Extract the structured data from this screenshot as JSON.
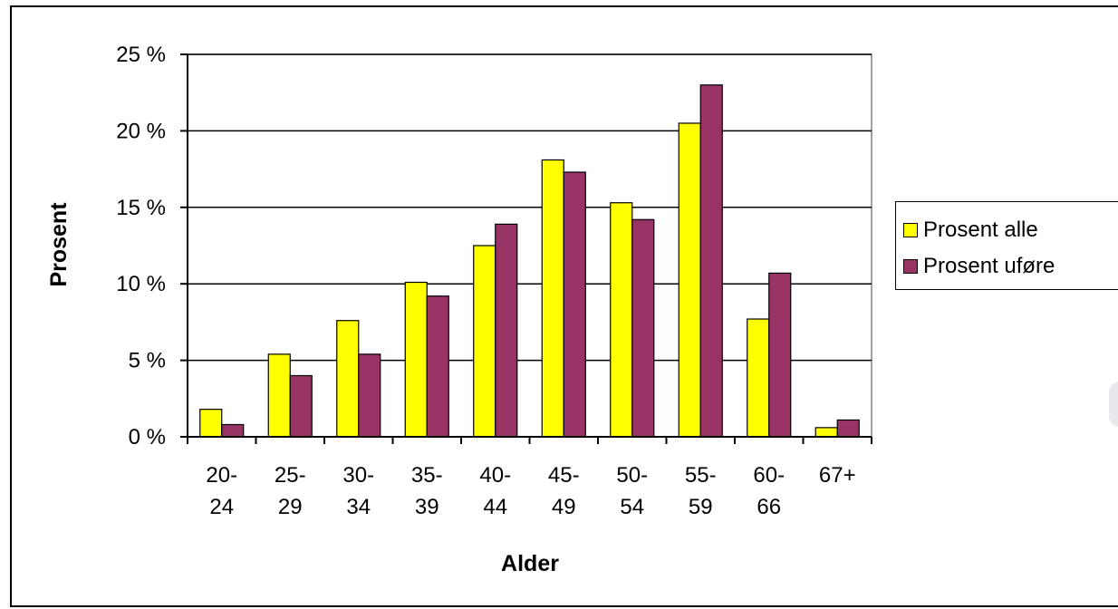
{
  "chart_data": {
    "type": "bar",
    "categories": [
      "20-\n24",
      "25-\n29",
      "30-\n34",
      "35-\n39",
      "40-\n44",
      "45-\n49",
      "50-\n54",
      "55-\n59",
      "60-\n66",
      "67+"
    ],
    "series": [
      {
        "name": "Prosent alle",
        "color": "#ffff00",
        "values": [
          1.8,
          5.4,
          7.6,
          10.1,
          12.5,
          18.1,
          15.3,
          20.5,
          7.7,
          0.6
        ]
      },
      {
        "name": "Prosent uføre",
        "color": "#993366",
        "values": [
          0.8,
          4.0,
          5.4,
          9.2,
          13.9,
          17.3,
          14.2,
          23.0,
          10.7,
          1.1
        ]
      }
    ],
    "xlabel": "Alder",
    "ylabel": "Prosent",
    "ylim": [
      0,
      25
    ],
    "yticks": [
      0,
      5,
      10,
      15,
      20,
      25
    ],
    "ytick_labels": [
      "0 %",
      "5 %",
      "10 %",
      "15 %",
      "20 %",
      "25 %"
    ],
    "grid": true,
    "legend_position": "right"
  }
}
